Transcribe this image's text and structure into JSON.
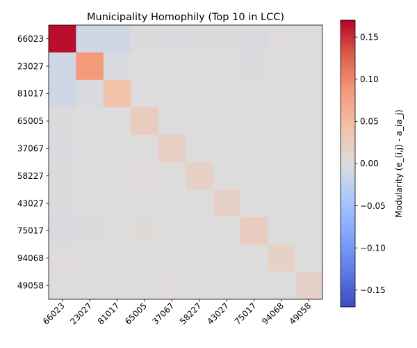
{
  "chart_data": {
    "type": "heatmap",
    "title": "Municipality Homophily (Top 10 in LCC)",
    "rows": [
      "66023",
      "23027",
      "81017",
      "65005",
      "37067",
      "58227",
      "43027",
      "75017",
      "94068",
      "49058"
    ],
    "cols": [
      "66023",
      "23027",
      "81017",
      "65005",
      "37067",
      "58227",
      "43027",
      "75017",
      "94068",
      "49058"
    ],
    "values": [
      [
        0.165,
        -0.012,
        -0.012,
        -0.002,
        -0.003,
        -0.002,
        -0.002,
        -0.004,
        0.002,
        0.0
      ],
      [
        -0.012,
        0.085,
        -0.004,
        -0.001,
        -0.001,
        -0.001,
        -0.001,
        -0.002,
        0.0,
        0.0
      ],
      [
        -0.012,
        -0.004,
        0.04,
        -0.001,
        -0.001,
        -0.001,
        -0.001,
        -0.001,
        0.0,
        0.0
      ],
      [
        -0.002,
        -0.001,
        -0.001,
        0.025,
        -0.001,
        0.0,
        0.0,
        -0.001,
        0.0,
        0.0
      ],
      [
        -0.003,
        -0.001,
        -0.001,
        -0.001,
        0.02,
        0.0,
        0.0,
        -0.001,
        0.0,
        0.0
      ],
      [
        -0.002,
        -0.001,
        -0.001,
        0.002,
        0.0,
        0.018,
        0.0,
        -0.001,
        0.0,
        0.0
      ],
      [
        -0.002,
        -0.001,
        -0.001,
        0.0,
        0.0,
        0.0,
        0.018,
        -0.001,
        0.0,
        0.0
      ],
      [
        -0.004,
        -0.002,
        -0.001,
        0.003,
        -0.001,
        -0.001,
        -0.001,
        0.025,
        -0.001,
        0.0
      ],
      [
        0.002,
        0.0,
        0.0,
        0.0,
        0.0,
        0.0,
        0.0,
        -0.001,
        0.018,
        0.0
      ],
      [
        0.0,
        0.0,
        0.0,
        0.0,
        0.002,
        0.0,
        0.0,
        0.0,
        0.0,
        0.015
      ]
    ],
    "colormap": "coolwarm",
    "vmin": -0.17,
    "vmax": 0.17,
    "colorbar": {
      "label": "Modularity (e_(i,j) - a_ia_j)",
      "ticks": [
        0.15,
        0.1,
        0.05,
        0.0,
        -0.05,
        -0.1,
        -0.15
      ],
      "tick_labels": [
        "0.15",
        "0.10",
        "0.05",
        "0.00",
        "−0.05",
        "−0.10",
        "−0.15"
      ]
    }
  }
}
